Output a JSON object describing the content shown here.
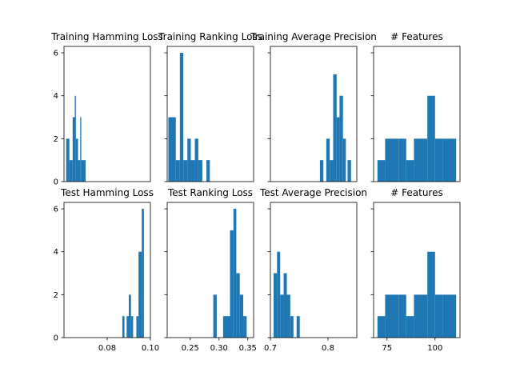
{
  "colors": {
    "bar": "#1f77b4",
    "frame": "#000000",
    "background": "#ffffff"
  },
  "chart_data": [
    {
      "type": "bar",
      "title": "Training Hamming Loss",
      "xlim": [
        0.06,
        0.1
      ],
      "ylim": [
        0,
        6.3
      ],
      "xticks": [],
      "yticks": [
        "0",
        "2",
        "4",
        "6"
      ],
      "bars": [
        {
          "x0": 0.061,
          "x1": 0.0625,
          "value": 2
        },
        {
          "x0": 0.0625,
          "x1": 0.064,
          "value": 1
        },
        {
          "x0": 0.064,
          "x1": 0.065,
          "value": 3
        },
        {
          "x0": 0.065,
          "x1": 0.0655,
          "value": 4
        },
        {
          "x0": 0.0655,
          "x1": 0.0665,
          "value": 2
        },
        {
          "x0": 0.0665,
          "x1": 0.0675,
          "value": 1
        },
        {
          "x0": 0.0675,
          "x1": 0.068,
          "value": 3
        },
        {
          "x0": 0.068,
          "x1": 0.07,
          "value": 1
        }
      ]
    },
    {
      "type": "bar",
      "title": "Training Ranking Loss",
      "xlim": [
        0.21,
        0.36
      ],
      "ylim": [
        0,
        6.3
      ],
      "xticks": [],
      "yticks": [],
      "bars": [
        {
          "x0": 0.212,
          "x1": 0.225,
          "value": 3
        },
        {
          "x0": 0.225,
          "x1": 0.232,
          "value": 1
        },
        {
          "x0": 0.232,
          "x1": 0.238,
          "value": 6
        },
        {
          "x0": 0.238,
          "x1": 0.245,
          "value": 1
        },
        {
          "x0": 0.245,
          "x1": 0.251,
          "value": 2
        },
        {
          "x0": 0.251,
          "x1": 0.258,
          "value": 1
        },
        {
          "x0": 0.258,
          "x1": 0.264,
          "value": 2
        },
        {
          "x0": 0.264,
          "x1": 0.271,
          "value": 1
        },
        {
          "x0": 0.278,
          "x1": 0.284,
          "value": 1
        }
      ]
    },
    {
      "type": "bar",
      "title": "Training Average Precision",
      "xlim": [
        0.7,
        0.85
      ],
      "ylim": [
        0,
        6.3
      ],
      "xticks": [],
      "yticks": [],
      "bars": [
        {
          "x0": 0.786,
          "x1": 0.792,
          "value": 1
        },
        {
          "x0": 0.797,
          "x1": 0.803,
          "value": 2
        },
        {
          "x0": 0.803,
          "x1": 0.809,
          "value": 1
        },
        {
          "x0": 0.809,
          "x1": 0.815,
          "value": 5
        },
        {
          "x0": 0.815,
          "x1": 0.82,
          "value": 3
        },
        {
          "x0": 0.82,
          "x1": 0.826,
          "value": 4
        },
        {
          "x0": 0.826,
          "x1": 0.831,
          "value": 2
        },
        {
          "x0": 0.834,
          "x1": 0.84,
          "value": 1
        }
      ]
    },
    {
      "type": "bar",
      "title": "# Features",
      "xlim": [
        68,
        113
      ],
      "ylim": [
        0,
        6.3
      ],
      "xticks": [],
      "yticks": [],
      "bars": [
        {
          "x0": 70,
          "x1": 74,
          "value": 1
        },
        {
          "x0": 74,
          "x1": 78,
          "value": 2
        },
        {
          "x0": 78,
          "x1": 81,
          "value": 2
        },
        {
          "x0": 81,
          "x1": 85,
          "value": 2
        },
        {
          "x0": 85,
          "x1": 89,
          "value": 1
        },
        {
          "x0": 89,
          "x1": 93,
          "value": 2
        },
        {
          "x0": 93,
          "x1": 96,
          "value": 2
        },
        {
          "x0": 96,
          "x1": 100,
          "value": 4
        },
        {
          "x0": 100,
          "x1": 104,
          "value": 2
        },
        {
          "x0": 104,
          "x1": 108,
          "value": 2
        },
        {
          "x0": 108,
          "x1": 111,
          "value": 2
        }
      ]
    },
    {
      "type": "bar",
      "title": "Test Hamming Loss",
      "xlim": [
        0.06,
        0.1
      ],
      "ylim": [
        0,
        6.3
      ],
      "xticks": [
        {
          "value": 0.08,
          "label": "0.08"
        },
        {
          "value": 0.1,
          "label": "0.10"
        }
      ],
      "yticks": [
        "0",
        "2",
        "4",
        "6"
      ],
      "bars": [
        {
          "x0": 0.087,
          "x1": 0.088,
          "value": 1
        },
        {
          "x0": 0.089,
          "x1": 0.09,
          "value": 1
        },
        {
          "x0": 0.09,
          "x1": 0.091,
          "value": 2
        },
        {
          "x0": 0.091,
          "x1": 0.092,
          "value": 1
        },
        {
          "x0": 0.0935,
          "x1": 0.0945,
          "value": 1
        },
        {
          "x0": 0.0945,
          "x1": 0.096,
          "value": 4
        },
        {
          "x0": 0.096,
          "x1": 0.097,
          "value": 6
        }
      ]
    },
    {
      "type": "bar",
      "title": "Test Ranking Loss",
      "xlim": [
        0.21,
        0.36
      ],
      "ylim": [
        0,
        6.3
      ],
      "xticks": [
        {
          "value": 0.25,
          "label": "0.25"
        },
        {
          "value": 0.3,
          "label": "0.30"
        },
        {
          "value": 0.35,
          "label": "0.35"
        }
      ],
      "yticks": [],
      "bars": [
        {
          "x0": 0.29,
          "x1": 0.296,
          "value": 2
        },
        {
          "x0": 0.307,
          "x1": 0.319,
          "value": 1
        },
        {
          "x0": 0.319,
          "x1": 0.325,
          "value": 5
        },
        {
          "x0": 0.325,
          "x1": 0.33,
          "value": 6
        },
        {
          "x0": 0.33,
          "x1": 0.336,
          "value": 3
        },
        {
          "x0": 0.336,
          "x1": 0.342,
          "value": 2
        },
        {
          "x0": 0.342,
          "x1": 0.348,
          "value": 1
        }
      ]
    },
    {
      "type": "bar",
      "title": "Test Average Precision",
      "xlim": [
        0.7,
        0.85
      ],
      "ylim": [
        0,
        6.3
      ],
      "xticks": [
        {
          "value": 0.7,
          "label": "0.7"
        },
        {
          "value": 0.8,
          "label": "0.8"
        }
      ],
      "yticks": [],
      "bars": [
        {
          "x0": 0.7055,
          "x1": 0.7115,
          "value": 3
        },
        {
          "x0": 0.7115,
          "x1": 0.717,
          "value": 4
        },
        {
          "x0": 0.717,
          "x1": 0.723,
          "value": 2
        },
        {
          "x0": 0.723,
          "x1": 0.7285,
          "value": 3
        },
        {
          "x0": 0.7285,
          "x1": 0.7345,
          "value": 2
        },
        {
          "x0": 0.7345,
          "x1": 0.74,
          "value": 1
        },
        {
          "x0": 0.7455,
          "x1": 0.751,
          "value": 1
        }
      ]
    },
    {
      "type": "bar",
      "title": "# Features",
      "xlim": [
        68,
        113
      ],
      "ylim": [
        0,
        6.3
      ],
      "xticks": [
        {
          "value": 75,
          "label": "75"
        },
        {
          "value": 100,
          "label": "100"
        }
      ],
      "yticks": [],
      "bars": [
        {
          "x0": 70,
          "x1": 74,
          "value": 1
        },
        {
          "x0": 74,
          "x1": 78,
          "value": 2
        },
        {
          "x0": 78,
          "x1": 81,
          "value": 2
        },
        {
          "x0": 81,
          "x1": 85,
          "value": 2
        },
        {
          "x0": 85,
          "x1": 89,
          "value": 1
        },
        {
          "x0": 89,
          "x1": 93,
          "value": 2
        },
        {
          "x0": 93,
          "x1": 96,
          "value": 2
        },
        {
          "x0": 96,
          "x1": 100,
          "value": 4
        },
        {
          "x0": 100,
          "x1": 104,
          "value": 2
        },
        {
          "x0": 104,
          "x1": 108,
          "value": 2
        },
        {
          "x0": 108,
          "x1": 111,
          "value": 2
        }
      ]
    }
  ]
}
